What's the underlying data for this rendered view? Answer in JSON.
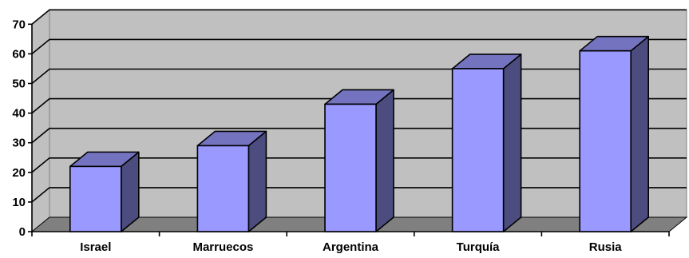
{
  "chart_data": {
    "type": "bar",
    "title": "",
    "xlabel": "",
    "ylabel": "",
    "categories": [
      "Israel",
      "Marruecos",
      "Argentina",
      "Turquía",
      "Rusia"
    ],
    "values": [
      22,
      29,
      43,
      55,
      61
    ],
    "ylim": [
      0,
      70
    ],
    "yticks": [
      "0",
      "10",
      "20",
      "30",
      "40",
      "50",
      "60",
      "70"
    ],
    "grid": true,
    "legend": "none",
    "style": "3d-column",
    "colors": {
      "bar_front": "#9999ff",
      "bar_side": "#4c4c7f",
      "bar_top": "#7373bf",
      "wall": "#c0c0c0",
      "floor": "#808080",
      "gridline": "#000000"
    }
  }
}
